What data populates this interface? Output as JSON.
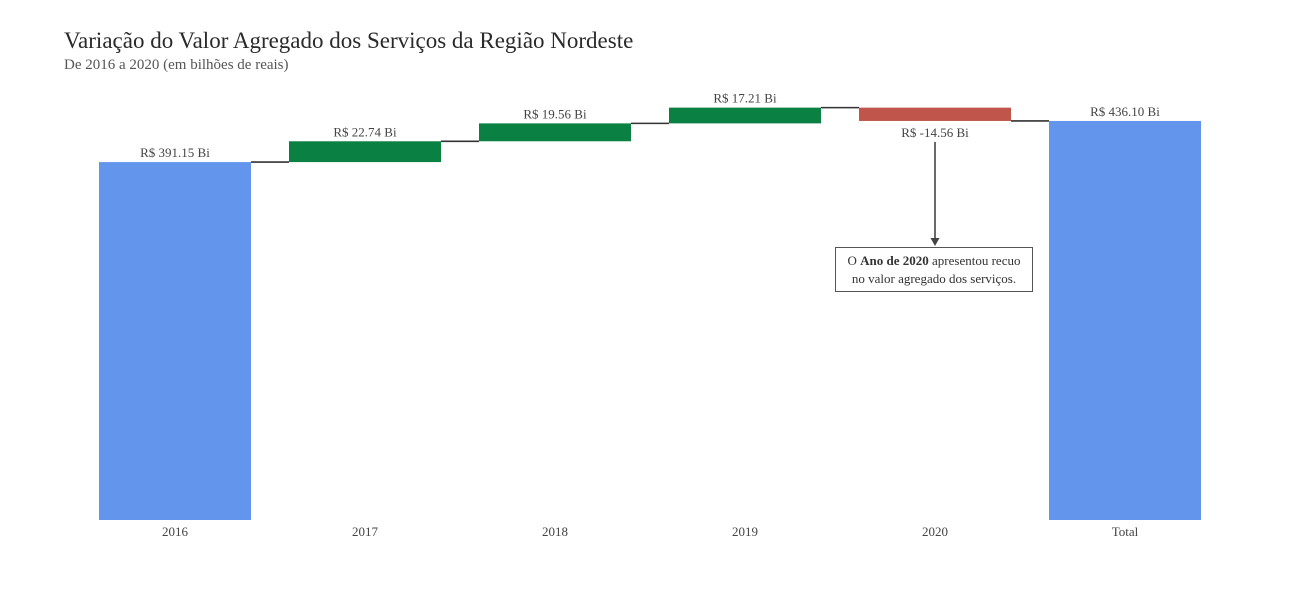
{
  "header": {
    "title": "Variação do Valor Agregado dos Serviços da Região Nordeste",
    "subtitle": "De 2016 a 2020 (em bilhões de reais)"
  },
  "annotation": {
    "prefix": "O ",
    "bold": "Ano de 2020",
    "suffix": " apresentou recuo no valor agregado dos serviços."
  },
  "chart_data": {
    "type": "bar",
    "subtype": "waterfall",
    "categories": [
      "2016",
      "2017",
      "2018",
      "2019",
      "2020",
      "Total"
    ],
    "values": [
      391.15,
      22.74,
      19.56,
      17.21,
      -14.56,
      436.1
    ],
    "measure": [
      "absolute",
      "relative",
      "relative",
      "relative",
      "relative",
      "total"
    ],
    "labels": [
      "R$ 391.15 Bi",
      "R$ 22.74 Bi",
      "R$ 19.56 Bi",
      "R$ 17.21 Bi",
      "R$ -14.56 Bi",
      "R$ 436.10 Bi"
    ],
    "ylim": [
      0,
      459
    ],
    "grid": false,
    "colors": {
      "absolute": "#6495ED",
      "total": "#6495ED",
      "increase": "#0B8043",
      "decrease": "#C0564B",
      "connector": "#333333"
    }
  }
}
